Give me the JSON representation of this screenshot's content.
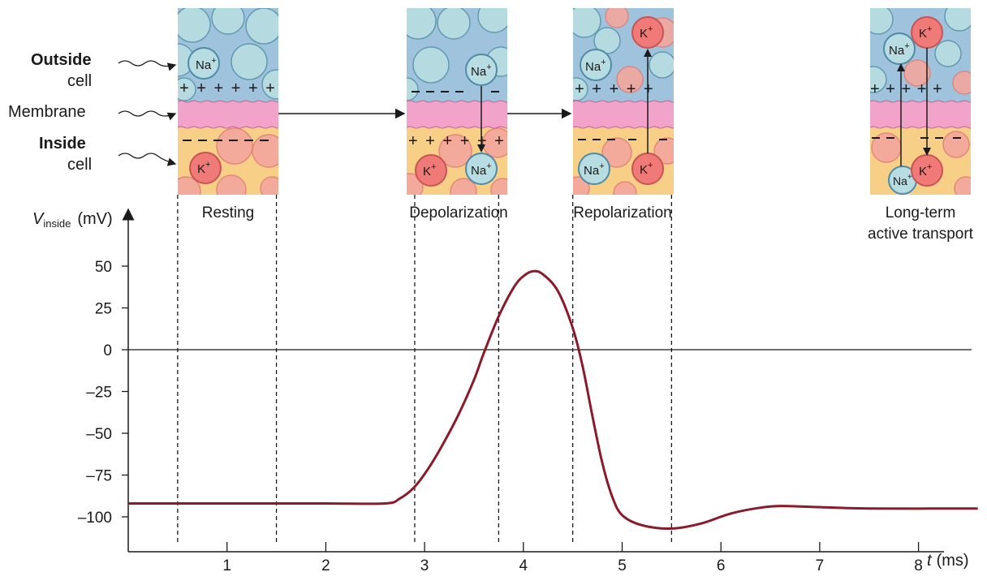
{
  "side_labels": {
    "outside": "Outside",
    "outside_cell": "cell",
    "membrane": "Membrane",
    "inside": "Inside",
    "inside_cell": "cell"
  },
  "stages": {
    "resting": "Resting",
    "depolarization": "Depolarization",
    "repolarization": "Repolarization",
    "long_term_1": "Long-term",
    "long_term_2": "active transport"
  },
  "ions": {
    "na": "Na",
    "k": "K",
    "plus": "+"
  },
  "colors": {
    "curve": "#8b1a2b",
    "membrane": "#f2a3c9",
    "outside_fluid": "#9fc3dd",
    "inside_fluid": "#f8cf86",
    "k_ion": "#ef7a78",
    "na_ion": "#b7dde2"
  },
  "chart_data": {
    "type": "line",
    "title": "",
    "ylabel_symbol": "V",
    "ylabel_sub": "inside",
    "ylabel_unit": "(mV)",
    "xlabel_symbol": "t",
    "xlabel_unit": "(ms)",
    "xlim": [
      0,
      8.6
    ],
    "ylim": [
      -125,
      68
    ],
    "x_ticks": [
      "1",
      "2",
      "3",
      "4",
      "5",
      "6",
      "7",
      "8"
    ],
    "y_ticks": [
      "50",
      "25",
      "0",
      "–25",
      "–50",
      "–75",
      "–100"
    ],
    "y_tick_values": [
      50,
      25,
      0,
      -25,
      -50,
      -75,
      -100
    ],
    "reference_line_y": 0,
    "stage_boundaries_ms": [
      0.5,
      1.5,
      2.9,
      3.75,
      4.5,
      5.5
    ],
    "series": [
      {
        "points": [
          [
            0,
            -92
          ],
          [
            1.0,
            -92
          ],
          [
            2.0,
            -92
          ],
          [
            2.6,
            -92
          ],
          [
            2.75,
            -89
          ],
          [
            2.9,
            -82
          ],
          [
            3.05,
            -70
          ],
          [
            3.2,
            -55
          ],
          [
            3.35,
            -38
          ],
          [
            3.5,
            -18
          ],
          [
            3.6,
            -2
          ],
          [
            3.75,
            20
          ],
          [
            3.9,
            37
          ],
          [
            4.0,
            44
          ],
          [
            4.1,
            47
          ],
          [
            4.2,
            45
          ],
          [
            4.35,
            35
          ],
          [
            4.5,
            13
          ],
          [
            4.6,
            -10
          ],
          [
            4.7,
            -40
          ],
          [
            4.8,
            -68
          ],
          [
            4.9,
            -88
          ],
          [
            5.0,
            -99
          ],
          [
            5.2,
            -105
          ],
          [
            5.5,
            -107
          ],
          [
            5.8,
            -104
          ],
          [
            6.1,
            -98
          ],
          [
            6.4,
            -94.5
          ],
          [
            6.6,
            -93.5
          ],
          [
            6.9,
            -94
          ],
          [
            7.5,
            -95
          ],
          [
            8.6,
            -95
          ]
        ]
      }
    ]
  }
}
